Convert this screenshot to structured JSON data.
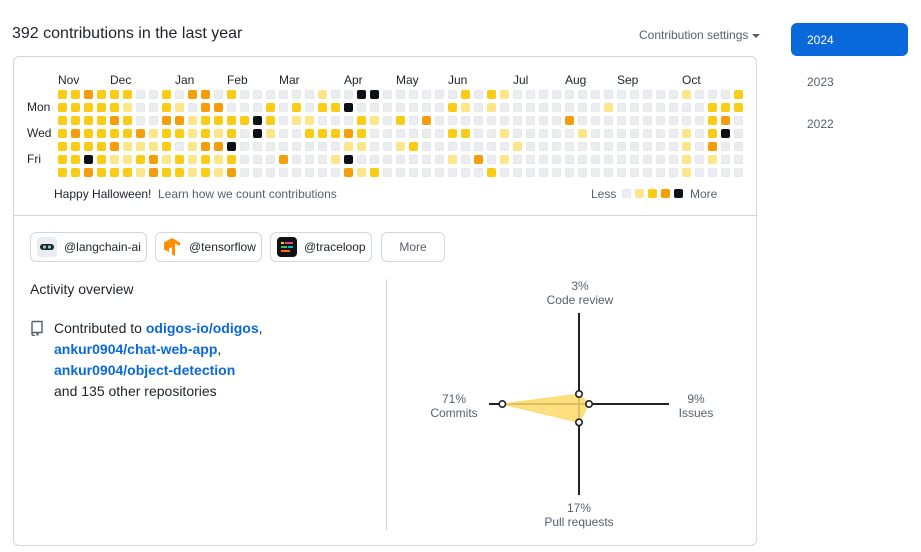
{
  "header": {
    "title": "392 contributions in the last year",
    "settings_label": "Contribution settings"
  },
  "calendar": {
    "months": [
      "Nov",
      "Dec",
      "Jan",
      "Feb",
      "Mar",
      "Apr",
      "May",
      "Jun",
      "Jul",
      "Aug",
      "Sep",
      "Oct"
    ],
    "day_labels": [
      "Mon",
      "Wed",
      "Fri"
    ],
    "weeks": [
      [
        2,
        2,
        2,
        2,
        2,
        2,
        2
      ],
      [
        2,
        2,
        2,
        3,
        2,
        2,
        2
      ],
      [
        3,
        2,
        2,
        2,
        2,
        4,
        3
      ],
      [
        2,
        2,
        2,
        2,
        2,
        2,
        2
      ],
      [
        2,
        2,
        3,
        2,
        3,
        1,
        2
      ],
      [
        2,
        1,
        2,
        2,
        1,
        1,
        2
      ],
      [
        0,
        0,
        0,
        3,
        1,
        2,
        1
      ],
      [
        0,
        0,
        0,
        1,
        1,
        3,
        3
      ],
      [
        2,
        2,
        3,
        2,
        2,
        1,
        2
      ],
      [
        0,
        1,
        3,
        2,
        0,
        2,
        2
      ],
      [
        3,
        0,
        1,
        1,
        1,
        1,
        1
      ],
      [
        3,
        3,
        2,
        2,
        3,
        2,
        2
      ],
      [
        0,
        3,
        2,
        1,
        3,
        1,
        1
      ],
      [
        2,
        0,
        2,
        2,
        4,
        2,
        3
      ],
      [
        0,
        0,
        2,
        0,
        0,
        0,
        0
      ],
      [
        0,
        0,
        4,
        4,
        0,
        0,
        0
      ],
      [
        0,
        2,
        2,
        1,
        0,
        0,
        0
      ],
      [
        0,
        0,
        0,
        0,
        0,
        3,
        0
      ],
      [
        0,
        2,
        1,
        0,
        0,
        0,
        0
      ],
      [
        0,
        0,
        1,
        2,
        0,
        0,
        0
      ],
      [
        1,
        2,
        0,
        2,
        0,
        0,
        0
      ],
      [
        0,
        2,
        0,
        2,
        0,
        1,
        0
      ],
      [
        0,
        4,
        0,
        3,
        1,
        4,
        3
      ],
      [
        4,
        0,
        2,
        2,
        1,
        0,
        1
      ],
      [
        4,
        0,
        1,
        0,
        0,
        0,
        2
      ],
      [
        0,
        0,
        0,
        0,
        0,
        0,
        0
      ],
      [
        0,
        0,
        2,
        0,
        1,
        0,
        0
      ],
      [
        0,
        0,
        0,
        0,
        2,
        0,
        0
      ],
      [
        0,
        0,
        3,
        0,
        0,
        0,
        0
      ],
      [
        0,
        0,
        0,
        0,
        0,
        0,
        0
      ],
      [
        0,
        2,
        0,
        2,
        0,
        1,
        0
      ],
      [
        2,
        1,
        0,
        2,
        0,
        0,
        0
      ],
      [
        0,
        0,
        0,
        0,
        0,
        3,
        0
      ],
      [
        2,
        1,
        0,
        0,
        0,
        0,
        2
      ],
      [
        1,
        0,
        0,
        1,
        0,
        1,
        0
      ],
      [
        0,
        0,
        0,
        0,
        1,
        0,
        0
      ],
      [
        0,
        0,
        0,
        0,
        0,
        0,
        0
      ],
      [
        0,
        0,
        0,
        0,
        0,
        0,
        0
      ],
      [
        0,
        0,
        0,
        0,
        0,
        0,
        0
      ],
      [
        0,
        0,
        3,
        0,
        0,
        0,
        0
      ],
      [
        0,
        0,
        0,
        1,
        0,
        0,
        0
      ],
      [
        0,
        0,
        0,
        0,
        0,
        0,
        0
      ],
      [
        0,
        1,
        0,
        0,
        0,
        0,
        0
      ],
      [
        0,
        0,
        0,
        0,
        0,
        0,
        0
      ],
      [
        0,
        0,
        0,
        0,
        0,
        0,
        0
      ],
      [
        0,
        0,
        0,
        0,
        0,
        0,
        0
      ],
      [
        0,
        0,
        0,
        0,
        0,
        0,
        0
      ],
      [
        0,
        0,
        0,
        0,
        0,
        0,
        0
      ],
      [
        1,
        0,
        0,
        1,
        1,
        1,
        1
      ],
      [
        0,
        0,
        0,
        0,
        0,
        0,
        0
      ],
      [
        0,
        2,
        2,
        2,
        3,
        1,
        0
      ],
      [
        0,
        2,
        3,
        4,
        0,
        0,
        0
      ],
      [
        2,
        2,
        0,
        0,
        0,
        0,
        0
      ]
    ]
  },
  "footer": {
    "halloween": "Happy Halloween!",
    "learn_link": "Learn how we count contributions",
    "less": "Less",
    "more": "More"
  },
  "orgs": [
    {
      "label": "@langchain-ai",
      "icon": "langchain-icon"
    },
    {
      "label": "@tensorflow",
      "icon": "tensorflow-icon"
    },
    {
      "label": "@traceloop",
      "icon": "traceloop-icon"
    }
  ],
  "orgs_more_label": "More",
  "activity": {
    "title": "Activity overview",
    "contributed_prefix": "Contributed to ",
    "repos": [
      "odigos-io/odigos",
      "ankur0904/chat-web-app",
      "ankur0904/object-detection"
    ],
    "others": "and 135 other repositories",
    "chart_data": {
      "type": "radar",
      "axes": [
        {
          "name": "Code review",
          "percent": 3,
          "label": "3%"
        },
        {
          "name": "Issues",
          "percent": 9,
          "label": "9%"
        },
        {
          "name": "Pull requests",
          "percent": 17,
          "label": "17%"
        },
        {
          "name": "Commits",
          "percent": 71,
          "label": "71%"
        }
      ],
      "fill_color": "#fdd96a",
      "stroke_color": "#1f2328"
    }
  },
  "years": [
    "2024",
    "2023",
    "2022"
  ],
  "colors": {
    "accent": "#0969da",
    "level1": "#fde68a",
    "level2": "#facc15",
    "level3": "#f59e0b",
    "level4": "#0d1117"
  }
}
